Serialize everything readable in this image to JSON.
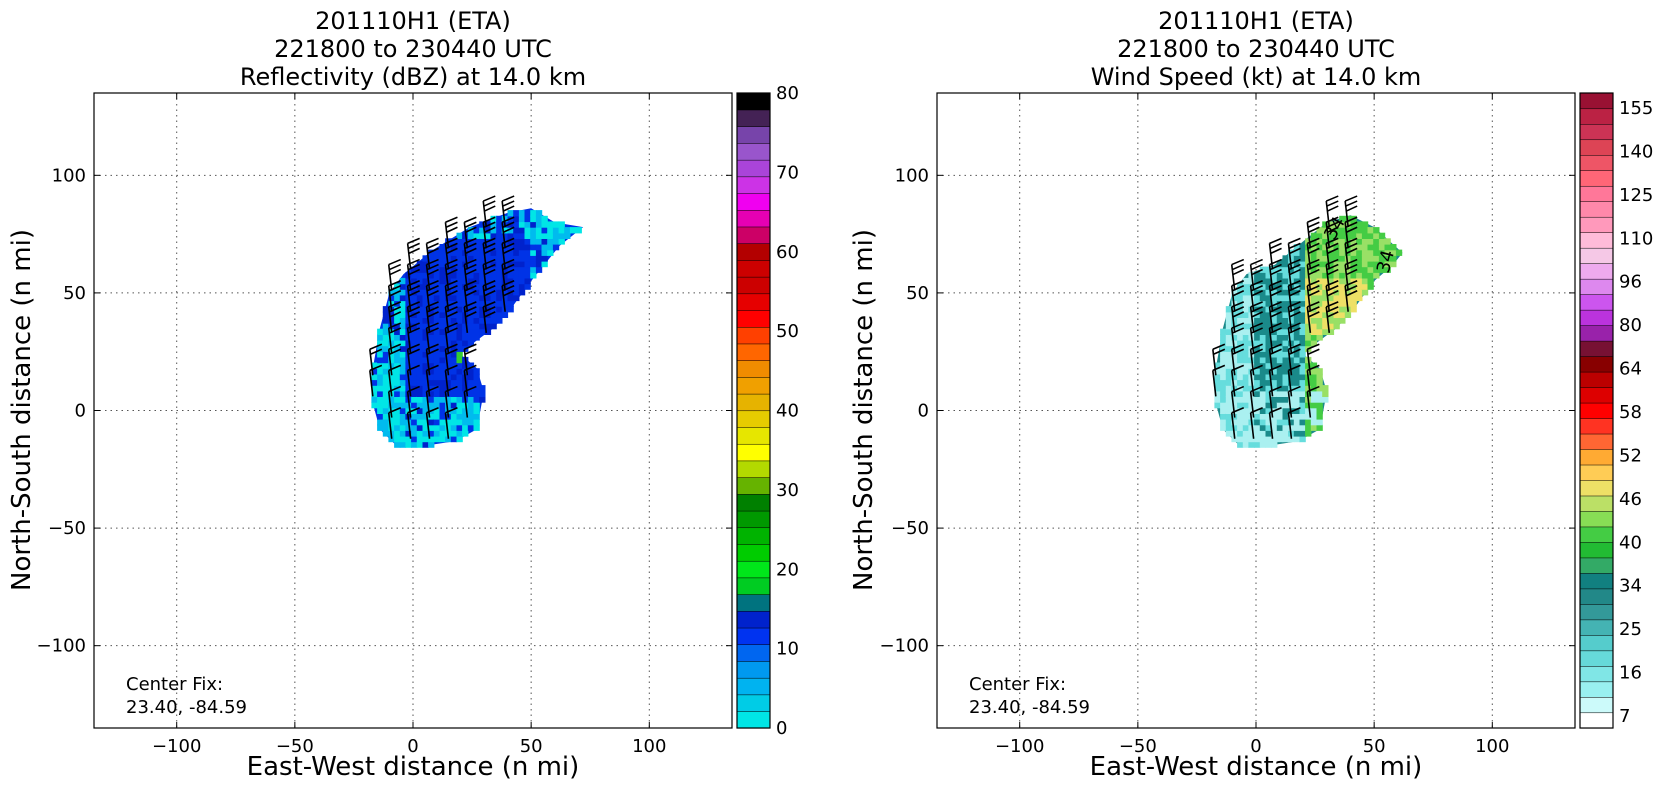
{
  "chart_data": [
    {
      "type": "heatmap",
      "title_lines": [
        "201110H1 (ETA)",
        "221800 to 230440 UTC",
        "Reflectivity (dBZ) at 14.0 km"
      ],
      "xlabel": "East-West distance (n mi)",
      "ylabel": "North-South distance (n mi)",
      "xlim": [
        -135,
        135
      ],
      "ylim": [
        -135,
        135
      ],
      "xticks": [
        -100,
        -50,
        0,
        50,
        100
      ],
      "yticks": [
        -100,
        -50,
        0,
        50,
        100
      ],
      "x_tick_labels": [
        "−100",
        "−50",
        "0",
        "50",
        "100"
      ],
      "y_tick_labels": [
        "−100",
        "−50",
        "0",
        "50",
        "100"
      ],
      "grid": true,
      "annotation": [
        "Center Fix:",
        "23.40, -84.59"
      ],
      "colorbar": {
        "range": [
          0,
          80
        ],
        "tick_values": [
          0,
          10,
          20,
          30,
          40,
          50,
          60,
          70,
          80
        ],
        "tick_labels": [
          "0",
          "10",
          "20",
          "30",
          "40",
          "50",
          "60",
          "70",
          "80"
        ],
        "colors": [
          "#00e6e6",
          "#00cce6",
          "#00b3f0",
          "#0099f0",
          "#0066f0",
          "#0033f0",
          "#0022cc",
          "#00737f",
          "#00cc22",
          "#00e61a",
          "#00cc00",
          "#00b300",
          "#009900",
          "#008000",
          "#66b300",
          "#b3d900",
          "#ffff00",
          "#e6e600",
          "#e6cc00",
          "#e6b300",
          "#f0a000",
          "#f08c00",
          "#ff6600",
          "#ff4000",
          "#ff0000",
          "#e60000",
          "#cc0000",
          "#cc0000",
          "#b30000",
          "#cc0066",
          "#e600b3",
          "#f000f0",
          "#cc33e6",
          "#aa44d9",
          "#9955cc",
          "#7744aa",
          "#442255",
          "#000000"
        ]
      },
      "field_colors": [
        "#0033e6",
        "#0022cc",
        "#00bbee",
        "#00e6e6"
      ],
      "echo_region": [
        [
          -17,
          3
        ],
        [
          -17,
          18
        ],
        [
          -14,
          35
        ],
        [
          -10,
          50
        ],
        [
          -4,
          58
        ],
        [
          8,
          68
        ],
        [
          24,
          78
        ],
        [
          40,
          84
        ],
        [
          50,
          86
        ],
        [
          60,
          80
        ],
        [
          72,
          78
        ],
        [
          62,
          70
        ],
        [
          50,
          55
        ],
        [
          42,
          44
        ],
        [
          34,
          35
        ],
        [
          26,
          29
        ],
        [
          20,
          24
        ],
        [
          27,
          18
        ],
        [
          30,
          8
        ],
        [
          27,
          -8
        ],
        [
          18,
          -13
        ],
        [
          5,
          -15
        ],
        [
          -7,
          -15
        ],
        [
          -14,
          -8
        ]
      ],
      "barbs_note": "wind barbs overlaid on grid"
    },
    {
      "type": "heatmap",
      "title_lines": [
        "201110H1 (ETA)",
        "221800 to 230440 UTC",
        "Wind Speed (kt) at 14.0 km"
      ],
      "xlabel": "East-West distance (n mi)",
      "ylabel": "North-South distance (n mi)",
      "xlim": [
        -135,
        135
      ],
      "ylim": [
        -135,
        135
      ],
      "xticks": [
        -100,
        -50,
        0,
        50,
        100
      ],
      "yticks": [
        -100,
        -50,
        0,
        50,
        100
      ],
      "x_tick_labels": [
        "−100",
        "−50",
        "0",
        "50",
        "100"
      ],
      "y_tick_labels": [
        "−100",
        "−50",
        "0",
        "50",
        "100"
      ],
      "grid": true,
      "annotation": [
        "Center Fix:",
        "23.40, -84.59"
      ],
      "contour_labels": [
        "34",
        "34"
      ],
      "colorbar": {
        "range": [
          7,
          160
        ],
        "tick_labels": [
          "7",
          "16",
          "25",
          "34",
          "40",
          "46",
          "52",
          "58",
          "64",
          "80",
          "96",
          "110",
          "125",
          "140",
          "155"
        ],
        "colors": [
          "#ffffff",
          "#ccfafa",
          "#99f0f0",
          "#80e6e6",
          "#66d9d9",
          "#55cccc",
          "#44b3b3",
          "#339999",
          "#228888",
          "#118080",
          "#33aa66",
          "#22bb33",
          "#44cc44",
          "#88dd55",
          "#bbe066",
          "#eee066",
          "#ffcc55",
          "#ffaa33",
          "#ff6633",
          "#ff3322",
          "#ff0000",
          "#dd0000",
          "#bb0000",
          "#880000",
          "#771133",
          "#9922aa",
          "#bb33dd",
          "#cc55ee",
          "#dd88ee",
          "#eeaaee",
          "#f5c8e6",
          "#ffbbd9",
          "#ff99bb",
          "#ff88aa",
          "#ff7799",
          "#ff6677",
          "#ee5566",
          "#dd4455",
          "#cc3355",
          "#bb2244",
          "#991133"
        ]
      },
      "field_colors": [
        "#1a8a8a",
        "#44cc44",
        "#99e066",
        "#eee066",
        "#66dddd",
        "#aaf0f0"
      ],
      "echo_region": [
        [
          -17,
          3
        ],
        [
          -17,
          18
        ],
        [
          -14,
          35
        ],
        [
          -10,
          50
        ],
        [
          -4,
          58
        ],
        [
          8,
          62
        ],
        [
          20,
          72
        ],
        [
          30,
          80
        ],
        [
          40,
          83
        ],
        [
          50,
          78
        ],
        [
          62,
          67
        ],
        [
          58,
          62
        ],
        [
          50,
          55
        ],
        [
          42,
          44
        ],
        [
          34,
          35
        ],
        [
          26,
          29
        ],
        [
          20,
          24
        ],
        [
          27,
          18
        ],
        [
          30,
          8
        ],
        [
          27,
          -8
        ],
        [
          18,
          -13
        ],
        [
          5,
          -15
        ],
        [
          -7,
          -15
        ],
        [
          -14,
          -8
        ]
      ],
      "barbs_note": "wind barbs overlaid on grid"
    }
  ]
}
